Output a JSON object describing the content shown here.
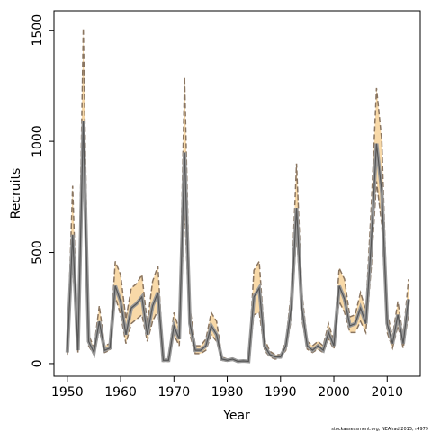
{
  "chart_data": {
    "type": "line",
    "x_label": "Year",
    "y_label": "Recruits",
    "note": "stockassessment.org, NEAhad 2015, r4979",
    "x": [
      1950,
      1951,
      1952,
      1953,
      1954,
      1955,
      1956,
      1957,
      1958,
      1959,
      1960,
      1961,
      1962,
      1963,
      1964,
      1965,
      1966,
      1967,
      1968,
      1969,
      1970,
      1971,
      1972,
      1973,
      1974,
      1975,
      1976,
      1977,
      1978,
      1979,
      1980,
      1981,
      1982,
      1983,
      1984,
      1985,
      1986,
      1987,
      1988,
      1989,
      1990,
      1991,
      1992,
      1993,
      1994,
      1995,
      1996,
      1997,
      1998,
      1999,
      2000,
      2001,
      2002,
      2003,
      2004,
      2005,
      2006,
      2007,
      2008,
      2009,
      2010,
      2011,
      2012,
      2013,
      2014
    ],
    "series": [
      {
        "color": "#555555",
        "values": [
          50,
          580,
          60,
          1090,
          100,
          50,
          190,
          60,
          70,
          350,
          280,
          130,
          250,
          270,
          300,
          130,
          260,
          320,
          15,
          15,
          170,
          110,
          950,
          180,
          60,
          60,
          80,
          170,
          130,
          20,
          15,
          20,
          10,
          12,
          10,
          300,
          340,
          80,
          40,
          30,
          30,
          80,
          250,
          700,
          250,
          80,
          60,
          80,
          60,
          140,
          80,
          350,
          290,
          170,
          180,
          250,
          180,
          540,
          990,
          770,
          180,
          90,
          220,
          90,
          290
        ]
      }
    ],
    "band": {
      "color": "#f8d9a8",
      "line_color": "#8a7560",
      "lower": [
        40,
        450,
        50,
        900,
        80,
        40,
        150,
        50,
        60,
        300,
        220,
        90,
        180,
        200,
        220,
        100,
        190,
        240,
        10,
        10,
        130,
        80,
        700,
        130,
        45,
        45,
        60,
        130,
        100,
        15,
        10,
        15,
        8,
        9,
        8,
        220,
        230,
        60,
        30,
        20,
        25,
        60,
        200,
        590,
        200,
        65,
        50,
        65,
        50,
        110,
        65,
        280,
        230,
        140,
        140,
        190,
        140,
        430,
        820,
        620,
        140,
        70,
        170,
        70,
        220
      ],
      "upper": [
        60,
        800,
        70,
        1510,
        130,
        70,
        260,
        80,
        90,
        460,
        400,
        200,
        340,
        360,
        400,
        180,
        370,
        440,
        20,
        20,
        230,
        150,
        1290,
        250,
        80,
        80,
        110,
        230,
        190,
        30,
        20,
        25,
        15,
        15,
        13,
        420,
        460,
        110,
        55,
        40,
        40,
        100,
        320,
        900,
        320,
        100,
        80,
        100,
        80,
        180,
        100,
        430,
        380,
        210,
        220,
        320,
        240,
        700,
        1240,
        1000,
        230,
        120,
        280,
        120,
        380
      ]
    },
    "xlim": [
      1947.5,
      2016.2
    ],
    "ylim": [
      -57,
      1588
    ],
    "xticks": [
      1950,
      1960,
      1970,
      1980,
      1990,
      2000,
      2010
    ],
    "yticks": [
      0,
      500,
      1000,
      1500
    ]
  }
}
